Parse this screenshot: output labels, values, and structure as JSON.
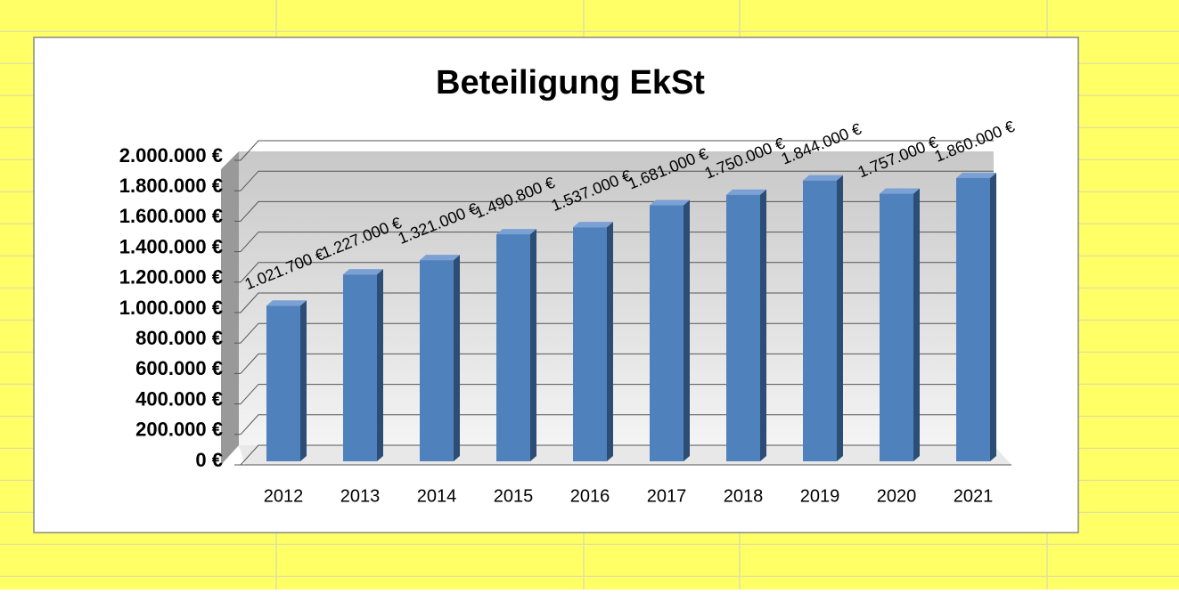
{
  "chart_data": {
    "type": "bar",
    "title": "Beteiligung EkSt",
    "categories": [
      "2012",
      "2013",
      "2014",
      "2015",
      "2016",
      "2017",
      "2018",
      "2019",
      "2020",
      "2021"
    ],
    "values": [
      1021700,
      1227000,
      1321000,
      1490800,
      1537000,
      1681000,
      1750000,
      1844000,
      1757000,
      1860000
    ],
    "value_labels": [
      "1.021.700 €",
      "1.227.000 €",
      "1.321.000 €",
      "1.490.800 €",
      "1.537.000 €",
      "1.681.000 €",
      "1.750.000 €",
      "1.844.000 €",
      "1.757.000 €",
      "1.860.000 €"
    ],
    "color": "#4f81bd",
    "ylim": [
      0,
      2000000
    ],
    "yticks": [
      {
        "value": 0,
        "label": "0 €"
      },
      {
        "value": 200000,
        "label": "200.000 €"
      },
      {
        "value": 400000,
        "label": "400.000 €"
      },
      {
        "value": 600000,
        "label": "600.000 €"
      },
      {
        "value": 800000,
        "label": "800.000 €"
      },
      {
        "value": 1000000,
        "label": "1.000.000 €"
      },
      {
        "value": 1200000,
        "label": "1.200.000 €"
      },
      {
        "value": 1400000,
        "label": "1.400.000 €"
      },
      {
        "value": 1600000,
        "label": "1.600.000 €"
      },
      {
        "value": 1800000,
        "label": "1.800.000 €"
      },
      {
        "value": 2000000,
        "label": "2.000.000 €"
      }
    ],
    "grid": true
  }
}
